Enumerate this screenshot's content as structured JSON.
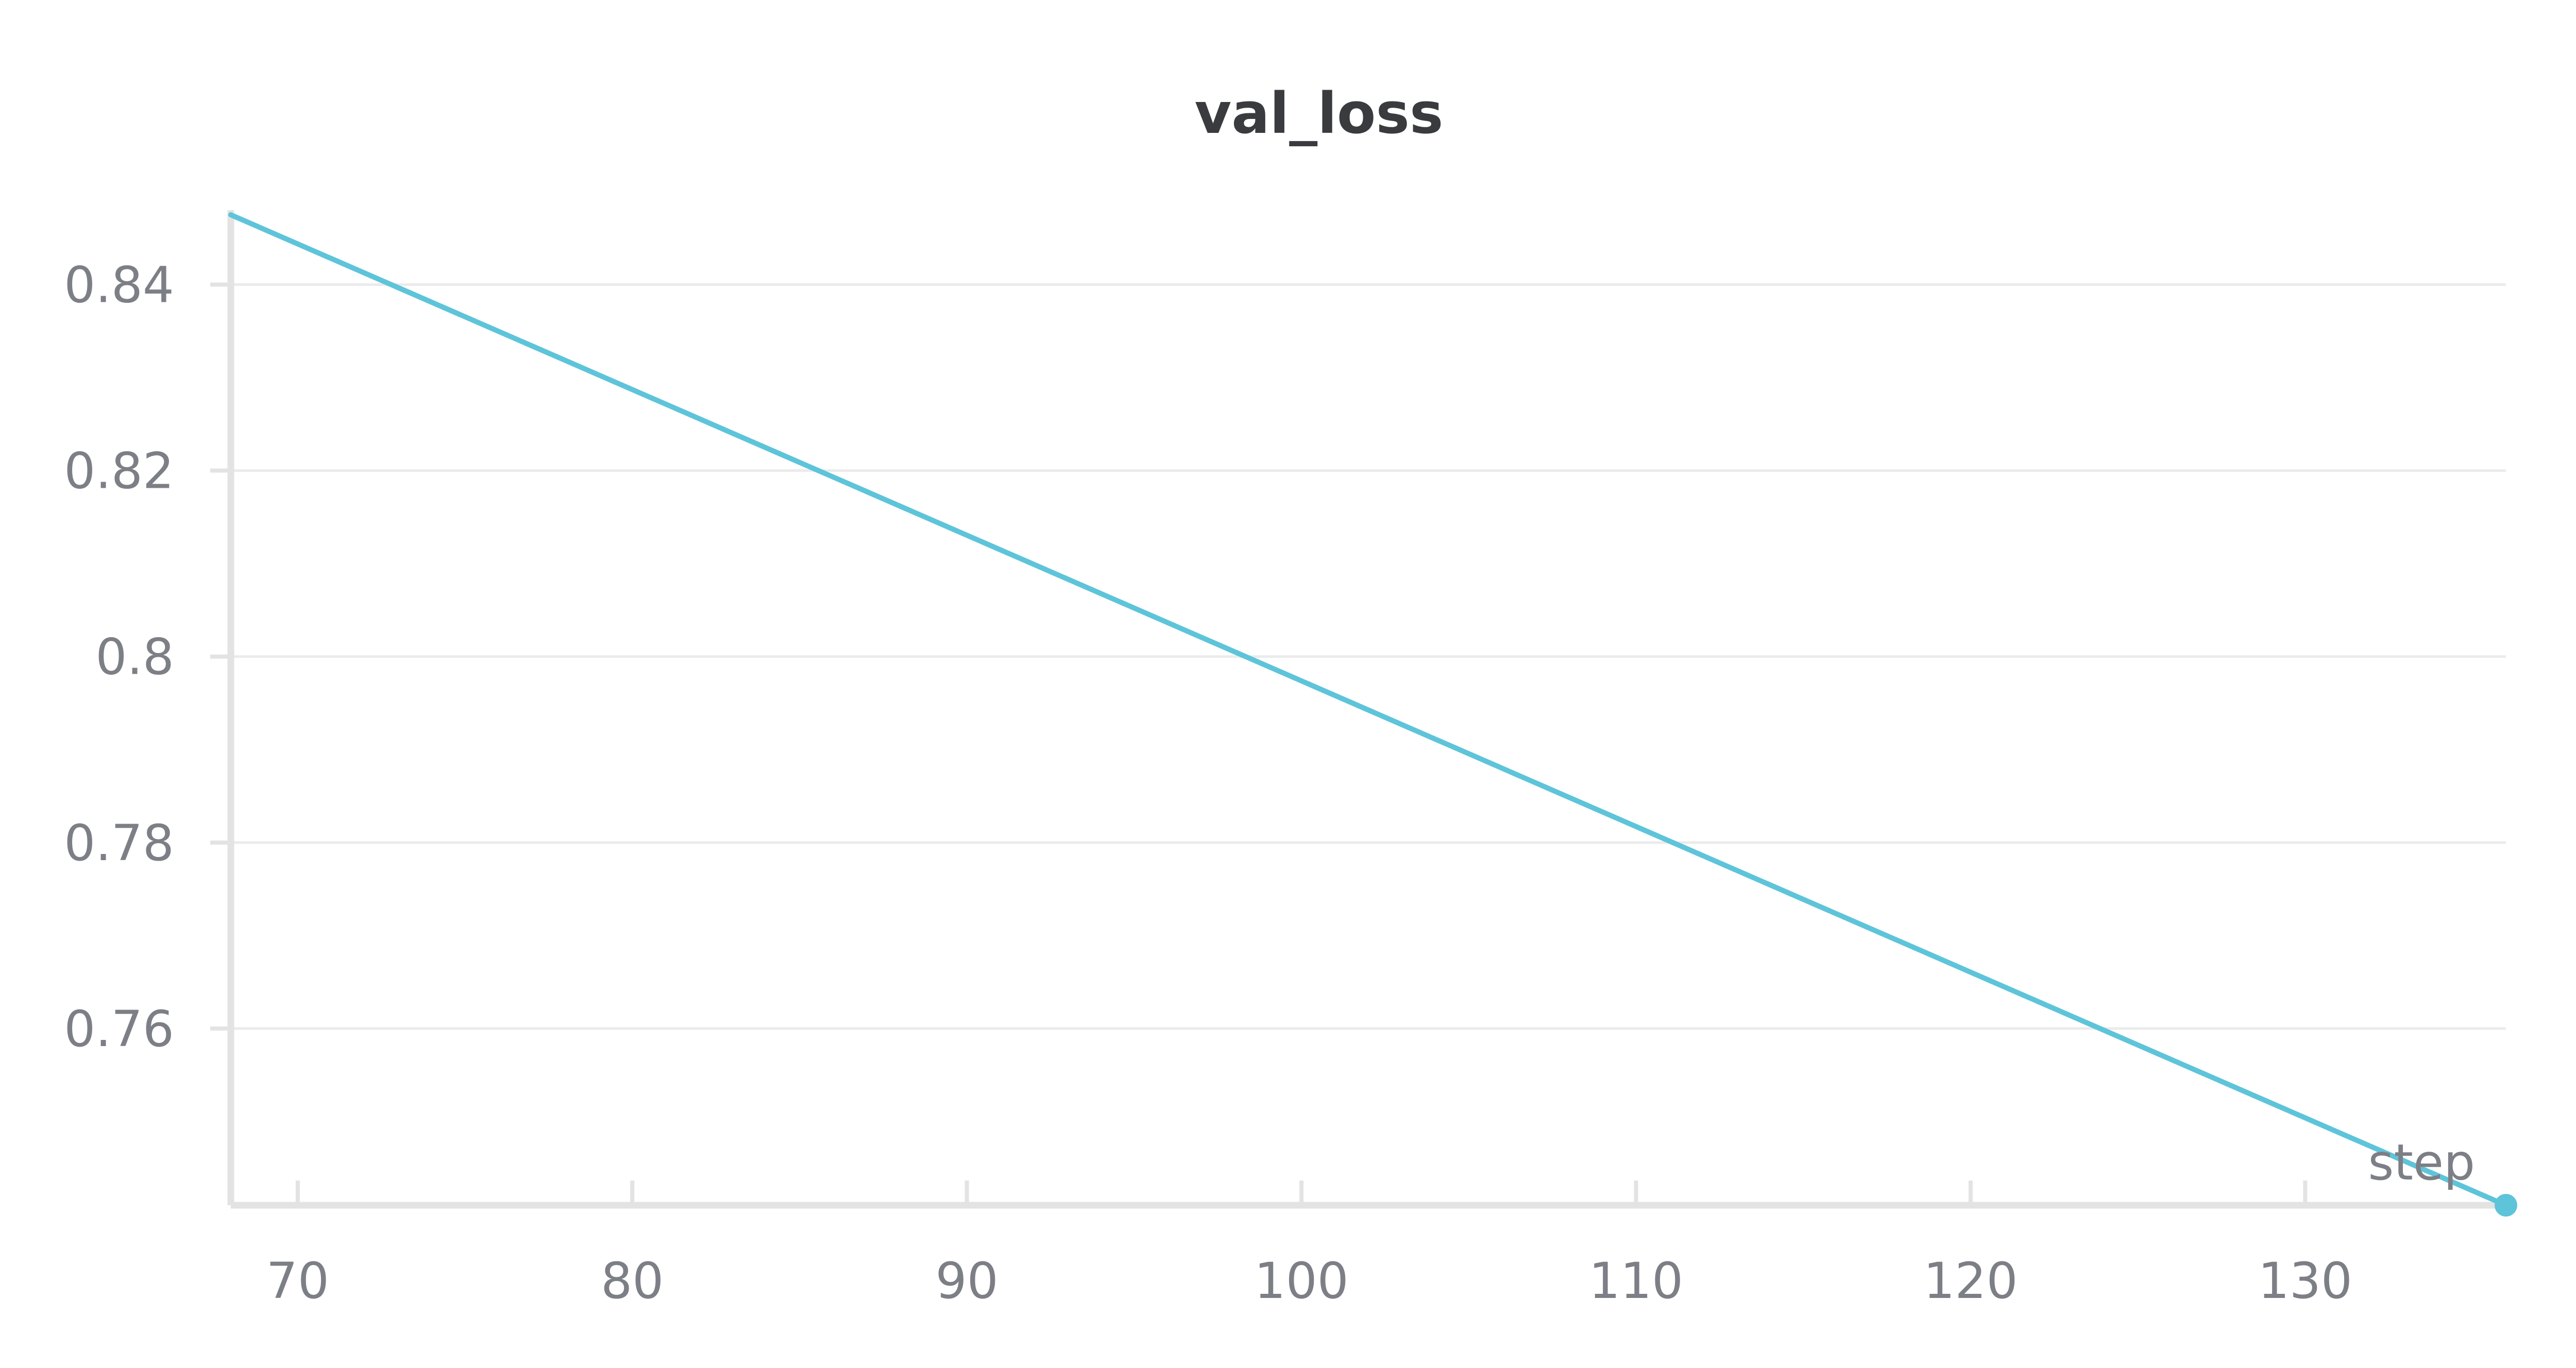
{
  "chart_data": {
    "type": "line",
    "title": "val_loss",
    "xlabel": "step",
    "ylabel": "",
    "xlim": [
      68,
      136
    ],
    "ylim": [
      0.741,
      0.848
    ],
    "x_ticks": [
      70,
      80,
      90,
      100,
      110,
      120,
      130
    ],
    "y_ticks": [
      0.76,
      0.78,
      0.8,
      0.82,
      0.84
    ],
    "y_tick_labels": [
      "0.76",
      "0.78",
      "0.8",
      "0.82",
      "0.84"
    ],
    "grid": "horizontal",
    "series": [
      {
        "color": "#5ec4d9",
        "x": [
          68,
          136
        ],
        "y": [
          0.8475,
          0.741
        ]
      }
    ]
  }
}
